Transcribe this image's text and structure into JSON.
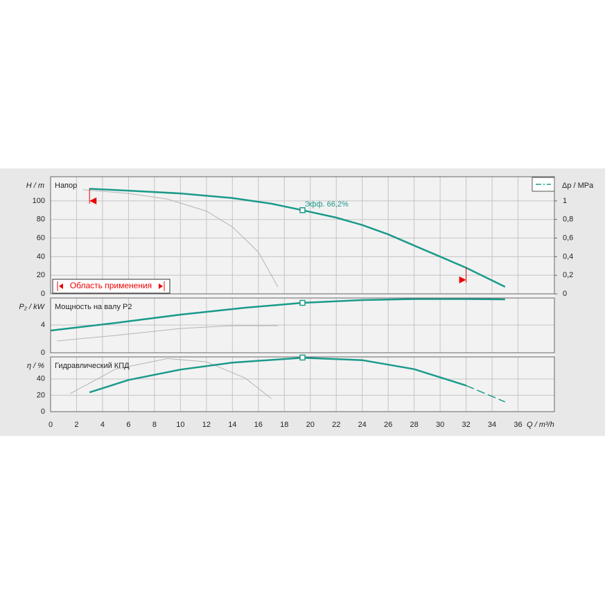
{
  "chart_data": [
    {
      "type": "line",
      "panel_label": "Напор",
      "ylabel": "H / m",
      "y2label": "Δp / MPa",
      "xlim": [
        0,
        38.8
      ],
      "ylim": [
        0,
        126
      ],
      "yticks": [
        0,
        20,
        40,
        60,
        80,
        100
      ],
      "y2lim": [
        0,
        1.26
      ],
      "y2ticks": [
        0,
        {
          "value": 0.2,
          "label": "0,2"
        },
        {
          "value": 0.4,
          "label": "0,4"
        },
        {
          "value": 0.6,
          "label": "0,6"
        },
        {
          "value": 0.8,
          "label": "0,8"
        },
        1
      ],
      "grid": true,
      "series": [
        {
          "color": "#b4b4b4",
          "width": 1,
          "x": [
            2.5,
            6,
            9,
            12,
            14,
            16,
            17.5
          ],
          "values": [
            112,
            108,
            102,
            89,
            72,
            45,
            7.5
          ]
        },
        {
          "color": "#1a9a8a",
          "width": 2.5,
          "x": [
            3,
            6,
            10,
            14,
            17,
            19.4,
            22,
            24,
            26,
            28,
            30,
            32,
            35
          ],
          "values": [
            113,
            111,
            108,
            103,
            97,
            90,
            82,
            74,
            64,
            52,
            40,
            28,
            7.5
          ]
        }
      ],
      "operating_point": {
        "x": 19.4,
        "y": 90,
        "label": "Эфф.  66,2%"
      },
      "range_label": "Область применения",
      "limit_markers": [
        {
          "x": 3,
          "y": 100
        },
        {
          "x": 32,
          "y": 15
        }
      ]
    },
    {
      "type": "line",
      "panel_label": "Мощность на валу P2",
      "ylabel": "P₂ / kW",
      "xlim": [
        0,
        38.8
      ],
      "ylim": [
        0,
        7.9
      ],
      "yticks": [
        0,
        4
      ],
      "grid": true,
      "series": [
        {
          "color": "#b4b4b4",
          "width": 1,
          "x": [
            0.5,
            5,
            10,
            14,
            17.5
          ],
          "values": [
            1.7,
            2.5,
            3.5,
            3.9,
            3.9
          ]
        },
        {
          "color": "#1a9a8a",
          "width": 2.5,
          "x": [
            0,
            5,
            10,
            15,
            19.4,
            24,
            28,
            32,
            35
          ],
          "values": [
            3.2,
            4.3,
            5.5,
            6.5,
            7.2,
            7.6,
            7.75,
            7.75,
            7.7
          ]
        }
      ],
      "operating_point": {
        "x": 19.4,
        "y": 7.2
      }
    },
    {
      "type": "line",
      "panel_label": "Гидравлический КПД",
      "ylabel": "η / %",
      "xlabel": "Q / m³/h",
      "xlim": [
        0,
        38.8
      ],
      "ylim": [
        0,
        67
      ],
      "yticks": [
        0,
        20,
        40
      ],
      "grid": true,
      "xticks": [
        0,
        2,
        4,
        6,
        8,
        10,
        12,
        14,
        16,
        18,
        20,
        22,
        24,
        26,
        28,
        30,
        32,
        34,
        36
      ],
      "series": [
        {
          "color": "#b4b4b4",
          "width": 1,
          "x": [
            1.5,
            5,
            9,
            12,
            15,
            17
          ],
          "values": [
            22,
            52,
            65,
            61,
            41,
            16
          ]
        },
        {
          "color": "#1a9a8a",
          "width": 2.5,
          "x": [
            3,
            6,
            10,
            14,
            19.4,
            24,
            28,
            32
          ],
          "values": [
            23.6,
            38.8,
            51.5,
            60,
            66,
            63,
            52,
            32
          ]
        },
        {
          "color": "#1a9a8a",
          "width": 1.5,
          "dashed": true,
          "x": [
            32,
            35
          ],
          "values": [
            32,
            12
          ]
        }
      ],
      "operating_point": {
        "x": 19.4,
        "y": 66.2
      }
    }
  ]
}
